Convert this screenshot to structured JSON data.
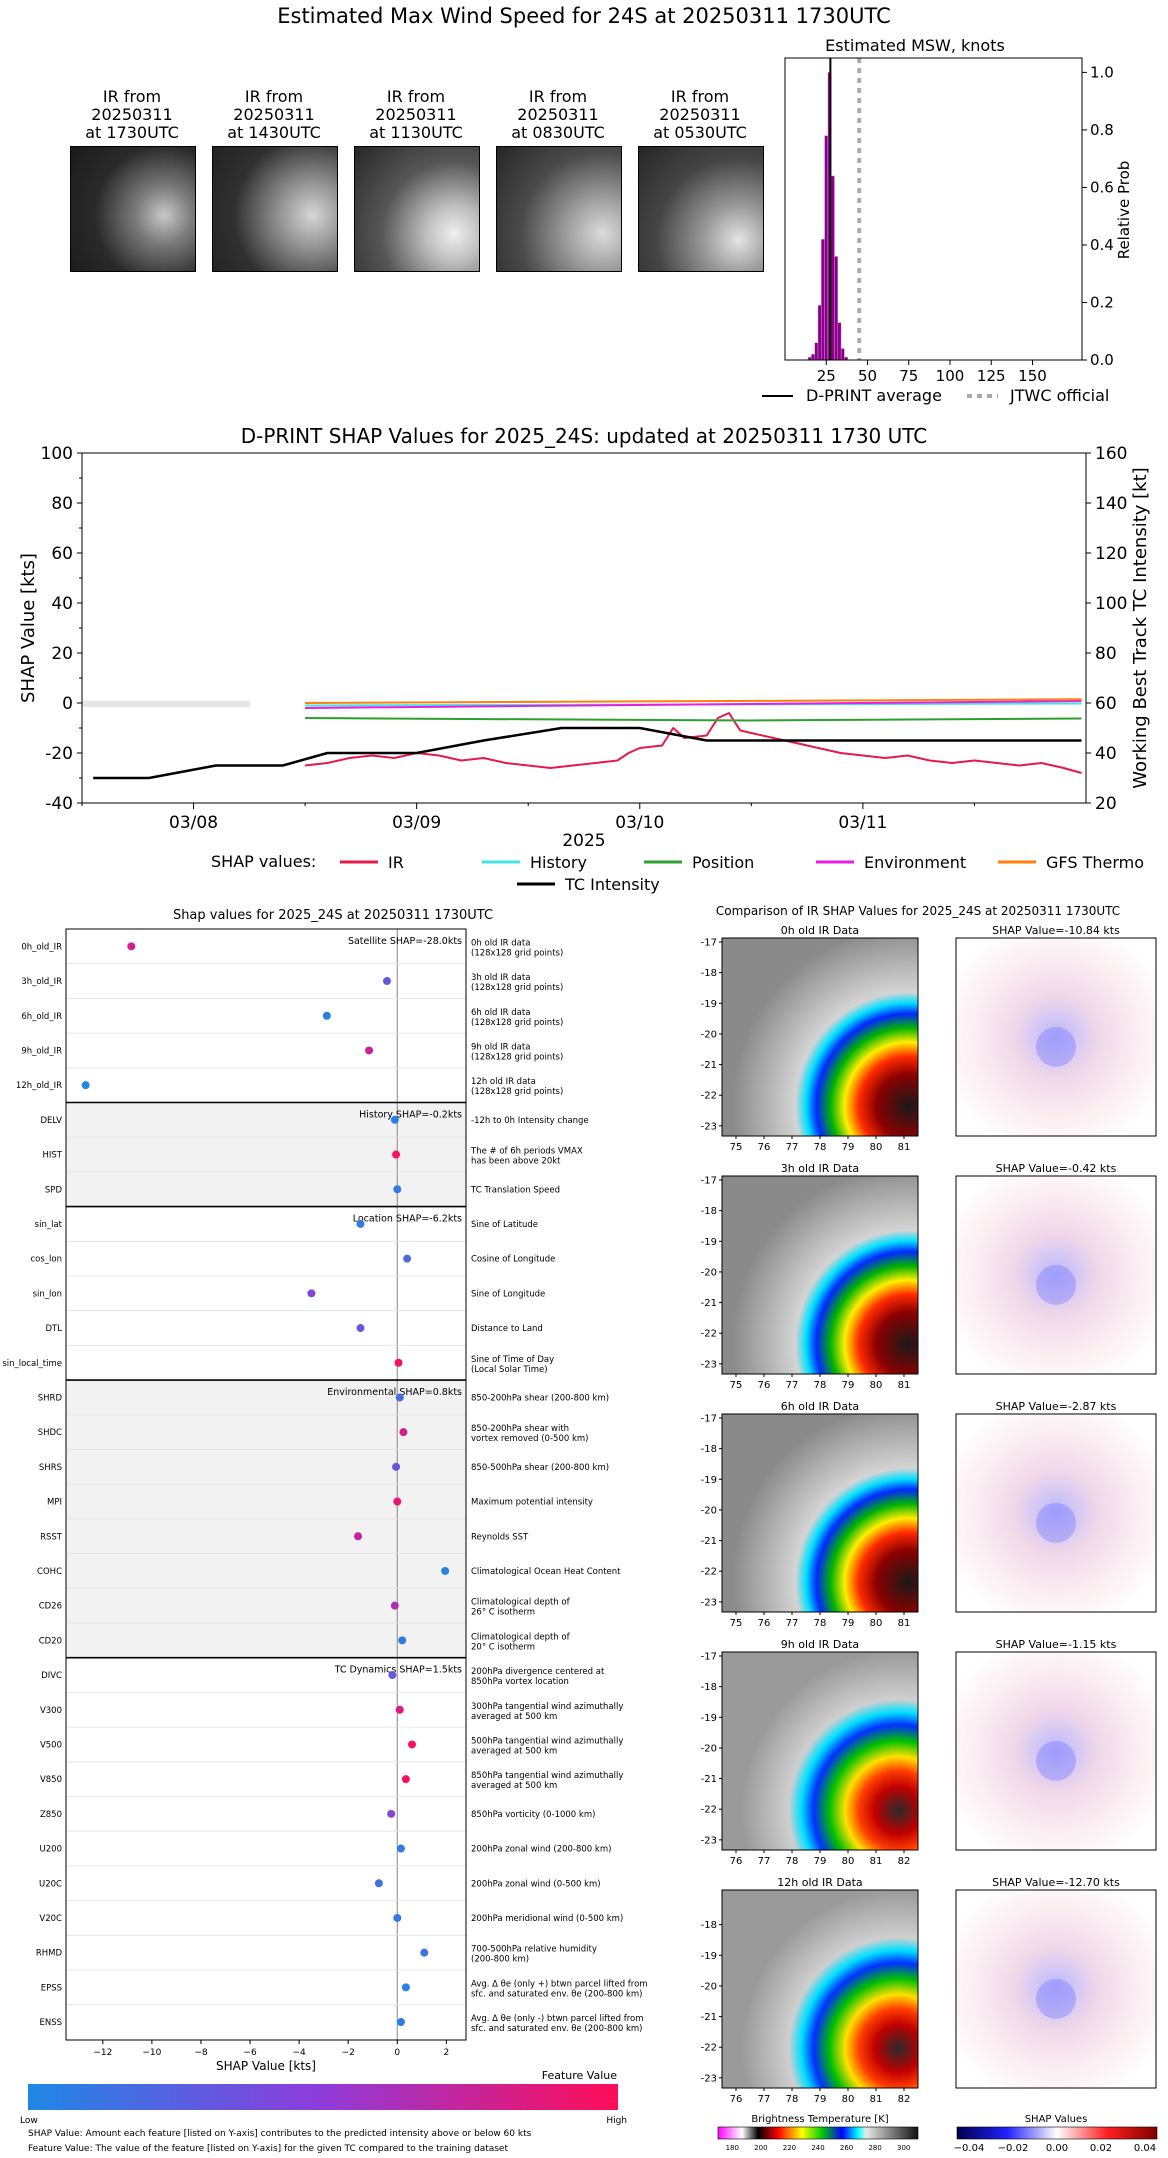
{
  "main_title": "Estimated Max Wind Speed for 24S at 20250311 1730UTC",
  "ir_thumbnails": [
    {
      "line1": "IR from",
      "line2": "20250311",
      "line3": "at 1730UTC"
    },
    {
      "line1": "IR from",
      "line2": "20250311",
      "line3": "at 1430UTC"
    },
    {
      "line1": "IR from",
      "line2": "20250311",
      "line3": "at 1130UTC"
    },
    {
      "line1": "IR from",
      "line2": "20250311",
      "line3": "at 0830UTC"
    },
    {
      "line1": "IR from",
      "line2": "20250311",
      "line3": "at 0530UTC"
    }
  ],
  "colors": {
    "IR": "#e6194b",
    "History": "#45e3e3",
    "Position": "#2ca02c",
    "Environment": "#e91ee1",
    "GFS Thermo": "#ff7f0e",
    "TC Intensity": "#000000",
    "hist_bar": "#8b008b",
    "jtwc": "#aaaaaa",
    "feat_low": "#1e88e5",
    "feat_high": "#ff0d57"
  },
  "chart_data": [
    {
      "type": "bar",
      "title": "Estimated MSW, knots",
      "ylabel": "Relative Prob",
      "xlim": [
        0,
        180
      ],
      "ylim": [
        0,
        1.05
      ],
      "xticks": [
        25,
        50,
        75,
        100,
        125,
        150
      ],
      "yticks": [
        "0.0",
        "0.2",
        "0.4",
        "0.6",
        "0.8",
        "1.0"
      ],
      "bins": [
        14,
        16,
        18,
        20,
        22,
        24,
        26,
        28,
        30,
        32,
        34,
        36
      ],
      "values": [
        0.01,
        0.02,
        0.06,
        0.19,
        0.42,
        0.78,
        1.0,
        0.64,
        0.36,
        0.13,
        0.04,
        0.01
      ],
      "dprint_average": 27.5,
      "jtwc_official": 45,
      "legend": [
        {
          "name": "D-PRINT average",
          "style": "solid"
        },
        {
          "name": "JTWC official",
          "style": "dotted"
        }
      ]
    },
    {
      "type": "line",
      "title": "D-PRINT SHAP Values for 2025_24S: updated at 20250311 1730 UTC",
      "xlabel": "2025",
      "ylabel": "SHAP Value [kts]",
      "y2label": "Working Best Track TC Intensity [kt]",
      "xlim": [
        0,
        4.5
      ],
      "ylim": [
        -40,
        100
      ],
      "y2lim": [
        20,
        160
      ],
      "yticks": [
        -40,
        -20,
        0,
        20,
        40,
        60,
        80,
        100
      ],
      "y2ticks": [
        20,
        40,
        60,
        80,
        100,
        120,
        140,
        160
      ],
      "xtick_labels": [
        {
          "x": 0.5,
          "label": "03/08"
        },
        {
          "x": 1.5,
          "label": "03/09"
        },
        {
          "x": 2.5,
          "label": "03/10"
        },
        {
          "x": 3.5,
          "label": "03/11"
        }
      ],
      "legend_title": "SHAP values:",
      "series": [
        {
          "name": "IR",
          "points": [
            [
              1.0,
              -25
            ],
            [
              1.1,
              -24
            ],
            [
              1.2,
              -22
            ],
            [
              1.3,
              -21
            ],
            [
              1.4,
              -22
            ],
            [
              1.5,
              -20
            ],
            [
              1.6,
              -21
            ],
            [
              1.7,
              -23
            ],
            [
              1.8,
              -22
            ],
            [
              1.9,
              -24
            ],
            [
              2.0,
              -25
            ],
            [
              2.1,
              -26
            ],
            [
              2.2,
              -25
            ],
            [
              2.3,
              -24
            ],
            [
              2.4,
              -23
            ],
            [
              2.45,
              -20
            ],
            [
              2.5,
              -18
            ],
            [
              2.6,
              -17
            ],
            [
              2.65,
              -10
            ],
            [
              2.7,
              -14
            ],
            [
              2.8,
              -13
            ],
            [
              2.85,
              -6
            ],
            [
              2.9,
              -4
            ],
            [
              2.95,
              -11
            ],
            [
              3.0,
              -12
            ],
            [
              3.1,
              -14
            ],
            [
              3.2,
              -16
            ],
            [
              3.3,
              -18
            ],
            [
              3.4,
              -20
            ],
            [
              3.5,
              -21
            ],
            [
              3.6,
              -22
            ],
            [
              3.7,
              -21
            ],
            [
              3.8,
              -23
            ],
            [
              3.9,
              -24
            ],
            [
              4.0,
              -23
            ],
            [
              4.1,
              -24
            ],
            [
              4.2,
              -25
            ],
            [
              4.3,
              -24
            ],
            [
              4.4,
              -26
            ],
            [
              4.48,
              -28
            ]
          ]
        },
        {
          "name": "History",
          "points": [
            [
              1.0,
              -1
            ],
            [
              4.48,
              -0.2
            ]
          ]
        },
        {
          "name": "Position",
          "points": [
            [
              1.0,
              -6
            ],
            [
              2.0,
              -6.5
            ],
            [
              3.0,
              -7
            ],
            [
              4.48,
              -6.2
            ]
          ]
        },
        {
          "name": "Environment",
          "points": [
            [
              1.0,
              -2
            ],
            [
              4.48,
              0.8
            ]
          ]
        },
        {
          "name": "GFS Thermo",
          "points": [
            [
              1.0,
              0
            ],
            [
              4.48,
              1.5
            ]
          ]
        },
        {
          "name": "TC Intensity",
          "axis": "y2",
          "points": [
            [
              0.05,
              30
            ],
            [
              0.3,
              30
            ],
            [
              0.6,
              35
            ],
            [
              0.9,
              35
            ],
            [
              1.1,
              40
            ],
            [
              1.5,
              40
            ],
            [
              1.8,
              45
            ],
            [
              2.15,
              50
            ],
            [
              2.5,
              50
            ],
            [
              2.8,
              45
            ],
            [
              3.5,
              45
            ],
            [
              4.48,
              45
            ]
          ]
        }
      ]
    },
    {
      "type": "scatter",
      "title": "Shap values for 2025_24S at 20250311 1730UTC",
      "xlabel": "SHAP Value [kts]",
      "xlim": [
        -13.5,
        2.8
      ],
      "xticks": [
        -12,
        -10,
        -8,
        -6,
        -4,
        -2,
        0,
        2
      ],
      "colorbar": {
        "title": "Feature Value",
        "low": "Low",
        "high": "High"
      },
      "groups": [
        {
          "label": "Satellite SHAP=-28.0kts",
          "shaded": false,
          "features": [
            {
              "name": "0h_old_IR",
              "desc1": "0h old IR data",
              "desc2": "(128x128 grid points)",
              "x": -10.84,
              "f": 0.8
            },
            {
              "name": "3h_old_IR",
              "desc1": "3h old IR data",
              "desc2": "(128x128 grid points)",
              "x": -0.42,
              "f": 0.3
            },
            {
              "name": "6h_old_IR",
              "desc1": "6h old IR data",
              "desc2": "(128x128 grid points)",
              "x": -2.87,
              "f": 0.05
            },
            {
              "name": "9h_old_IR",
              "desc1": "9h old IR data",
              "desc2": "(128x128 grid points)",
              "x": -1.15,
              "f": 0.75
            },
            {
              "name": "12h_old_IR",
              "desc1": "12h old IR data",
              "desc2": "(128x128 grid points)",
              "x": -12.7,
              "f": 0.02
            }
          ]
        },
        {
          "label": "History SHAP=-0.2kts",
          "shaded": true,
          "features": [
            {
              "name": "DELV",
              "desc1": "-12h to 0h Intensity change",
              "desc2": "",
              "x": -0.1,
              "f": 0.05
            },
            {
              "name": "HIST",
              "desc1": "The # of 6h periods VMAX",
              "desc2": "has been above 20kt",
              "x": -0.05,
              "f": 0.95
            },
            {
              "name": "SPD",
              "desc1": "TC Translation Speed",
              "desc2": "",
              "x": 0.0,
              "f": 0.1
            }
          ]
        },
        {
          "label": "Location SHAP=-6.2kts",
          "shaded": false,
          "features": [
            {
              "name": "sin_lat",
              "desc1": "Sine of Latitude",
              "desc2": "",
              "x": -1.5,
              "f": 0.1
            },
            {
              "name": "cos_lon",
              "desc1": "Cosine of Longitude",
              "desc2": "",
              "x": 0.4,
              "f": 0.2
            },
            {
              "name": "sin_lon",
              "desc1": "Sine of Longitude",
              "desc2": "",
              "x": -3.5,
              "f": 0.45
            },
            {
              "name": "DTL",
              "desc1": "Distance to Land",
              "desc2": "",
              "x": -1.5,
              "f": 0.35
            },
            {
              "name": "sin_local_time",
              "desc1": "Sine of Time of Day",
              "desc2": "(Local Solar Time)",
              "x": 0.05,
              "f": 0.95
            }
          ]
        },
        {
          "label": "Environmental SHAP=0.8kts",
          "shaded": true,
          "features": [
            {
              "name": "SHRD",
              "desc1": "850-200hPa shear (200-800 km)",
              "desc2": "",
              "x": 0.1,
              "f": 0.2
            },
            {
              "name": "SHDC",
              "desc1": "850-200hPa shear with",
              "desc2": "vortex removed (0-500 km)",
              "x": 0.25,
              "f": 0.8
            },
            {
              "name": "SHRS",
              "desc1": "850-500hPa shear (200-800 km)",
              "desc2": "",
              "x": -0.05,
              "f": 0.35
            },
            {
              "name": "MPI",
              "desc1": "Maximum potential intensity",
              "desc2": "",
              "x": 0.0,
              "f": 0.9
            },
            {
              "name": "RSST",
              "desc1": "Reynolds SST",
              "desc2": "",
              "x": -1.6,
              "f": 0.75
            },
            {
              "name": "COHC",
              "desc1": "Climatological Ocean Heat Content",
              "desc2": "",
              "x": 1.95,
              "f": 0.05
            },
            {
              "name": "CD26",
              "desc1": "Climatological depth of",
              "desc2": "26° C isotherm",
              "x": -0.1,
              "f": 0.65
            },
            {
              "name": "CD20",
              "desc1": "Climatological depth of",
              "desc2": "20° C isotherm",
              "x": 0.2,
              "f": 0.1
            }
          ]
        },
        {
          "label": "TC Dynamics SHAP=1.5kts",
          "shaded": false,
          "features": [
            {
              "name": "DIVC",
              "desc1": "200hPa divergence centered at",
              "desc2": "850hPa vortex location",
              "x": -0.2,
              "f": 0.3
            },
            {
              "name": "V300",
              "desc1": "300hPa tangential wind azimuthally",
              "desc2": "averaged at 500 km",
              "x": 0.1,
              "f": 0.85
            },
            {
              "name": "V500",
              "desc1": "500hPa tangential wind azimuthally",
              "desc2": "averaged at 500 km",
              "x": 0.6,
              "f": 0.95
            },
            {
              "name": "V850",
              "desc1": "850hPa tangential wind azimuthally",
              "desc2": "averaged at 500 km",
              "x": 0.35,
              "f": 0.98
            },
            {
              "name": "Z850",
              "desc1": "850hPa vorticity (0-1000 km)",
              "desc2": "",
              "x": -0.25,
              "f": 0.45
            },
            {
              "name": "U200",
              "desc1": "200hPa zonal wind (200-800 km)",
              "desc2": "",
              "x": 0.15,
              "f": 0.1
            },
            {
              "name": "U20C",
              "desc1": "200hPa zonal wind (0-500 km)",
              "desc2": "",
              "x": -0.75,
              "f": 0.15
            },
            {
              "name": "V20C",
              "desc1": "200hPa meridional wind (0-500 km)",
              "desc2": "",
              "x": 0.0,
              "f": 0.1
            },
            {
              "name": "RHMD",
              "desc1": "700-500hPa relative humidity",
              "desc2": "(200-800 km)",
              "x": 1.1,
              "f": 0.15
            },
            {
              "name": "EPSS",
              "desc1": "Avg. Δ θe (only +) btwn parcel lifted from",
              "desc2": "sfc. and saturated env. θe (200-800 km)",
              "x": 0.35,
              "f": 0.05
            },
            {
              "name": "ENSS",
              "desc1": "Avg. Δ θe (only -) btwn parcel lifted from",
              "desc2": "sfc. and saturated env. θe (200-800 km)",
              "x": 0.15,
              "f": 0.05
            }
          ]
        }
      ]
    }
  ],
  "footnote1": "SHAP Value: Amount each feature [listed on Y-axis] contributes to the predicted intensity above or below 60 kts",
  "footnote2": "Feature Value: The value of the feature [listed on Y-axis] for the given TC compared to the training dataset",
  "comparison": {
    "title": "Comparison of IR SHAP Values for 2025_24S at 20250311 1730UTC",
    "rows": [
      {
        "ir_title": "0h old IR Data",
        "shap_title": "SHAP Value=-10.84 kts",
        "xticks": [
          "75",
          "76",
          "77",
          "78",
          "79",
          "80",
          "81"
        ],
        "xmin": 74.5,
        "xmax": 81.5
      },
      {
        "ir_title": "3h old IR Data",
        "shap_title": "SHAP Value=-0.42 kts",
        "xticks": [
          "75",
          "76",
          "77",
          "78",
          "79",
          "80",
          "81"
        ],
        "xmin": 74.5,
        "xmax": 81.5
      },
      {
        "ir_title": "6h old IR Data",
        "shap_title": "SHAP Value=-2.87 kts",
        "xticks": [
          "75",
          "76",
          "77",
          "78",
          "79",
          "80",
          "81"
        ],
        "xmin": 74.5,
        "xmax": 81.5
      },
      {
        "ir_title": "9h old IR Data",
        "shap_title": "SHAP Value=-1.15 kts",
        "xticks": [
          "76",
          "77",
          "78",
          "79",
          "80",
          "81",
          "82"
        ],
        "xmin": 75.5,
        "xmax": 82.5
      },
      {
        "ir_title": "12h old IR Data",
        "shap_title": "SHAP Value=-12.70 kts",
        "xticks": [
          "76",
          "77",
          "78",
          "79",
          "80",
          "81",
          "82"
        ],
        "xmin": 75.5,
        "xmax": 82.5
      }
    ],
    "ir_yticks": [
      "-17",
      "-18",
      "-19",
      "-20",
      "-21",
      "-22",
      "-23"
    ],
    "ir_yticks_last": [
      "-18",
      "-19",
      "-20",
      "-21",
      "-22",
      "-23"
    ],
    "bt_colorbar": {
      "title": "Brightness Temperature [K]",
      "ticks": [
        "180",
        "200",
        "220",
        "240",
        "260",
        "280",
        "300"
      ]
    },
    "shap_colorbar": {
      "title": "SHAP Values",
      "ticks": [
        "−0.04",
        "−0.02",
        "0.00",
        "0.02",
        "0.04"
      ]
    }
  }
}
